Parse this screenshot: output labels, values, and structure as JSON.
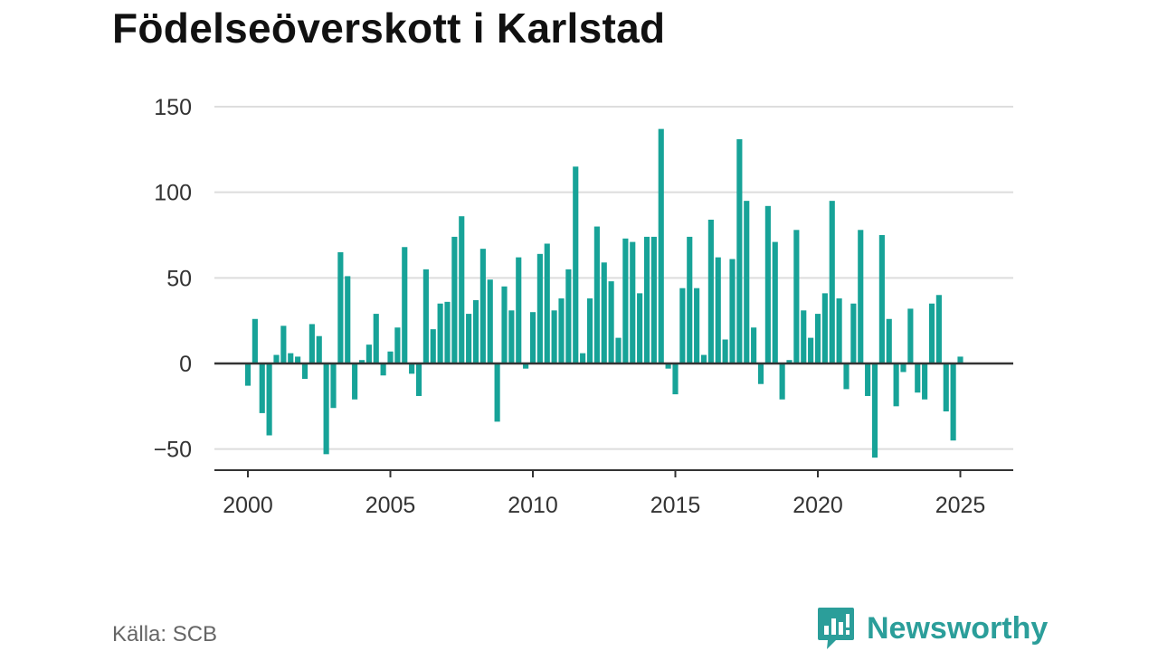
{
  "title": "Födelseöverskott i Karlstad",
  "source": "Källa: SCB",
  "brand": {
    "name": "Newsworthy",
    "icon": "chart-bubble-icon",
    "color": "#2b9e9a"
  },
  "colors": {
    "bar": "#17a398",
    "grid": "#dddddd",
    "axis": "#333333",
    "text": "#333333"
  },
  "chart_data": {
    "type": "bar",
    "title": "Födelseöverskott i Karlstad",
    "xlabel": "",
    "ylabel": "",
    "grid": true,
    "legend": "none",
    "x_ticks": [
      "2000",
      "2005",
      "2010",
      "2015",
      "2020",
      "2025"
    ],
    "y_ticks": [
      -50,
      0,
      50,
      100,
      150
    ],
    "y_tick_labels": [
      "−50",
      "0",
      "50",
      "100",
      "150"
    ],
    "xlim": [
      1999.75,
      2026.9
    ],
    "ylim": [
      -63,
      150
    ],
    "start_year": 2000,
    "periods_per_year": 4,
    "values": [
      -13,
      26,
      -29,
      -42,
      5,
      22,
      6,
      4,
      -9,
      23,
      16,
      -53,
      -26,
      65,
      51,
      -21,
      2,
      11,
      29,
      -7,
      7,
      21,
      68,
      -6,
      -19,
      55,
      20,
      35,
      36,
      74,
      86,
      29,
      37,
      67,
      49,
      -34,
      45,
      31,
      62,
      -3,
      30,
      64,
      70,
      31,
      38,
      55,
      115,
      6,
      38,
      80,
      59,
      48,
      15,
      73,
      71,
      41,
      74,
      74,
      137,
      -3,
      -18,
      44,
      74,
      44,
      5,
      84,
      62,
      14,
      61,
      131,
      95,
      21,
      -12,
      92,
      71,
      -21,
      2,
      78,
      31,
      15,
      29,
      41,
      95,
      38,
      -15,
      35,
      78,
      -19,
      -55,
      75,
      26,
      -25,
      -5,
      32,
      -17,
      -21,
      35,
      40,
      -28,
      -45,
      4
    ]
  }
}
